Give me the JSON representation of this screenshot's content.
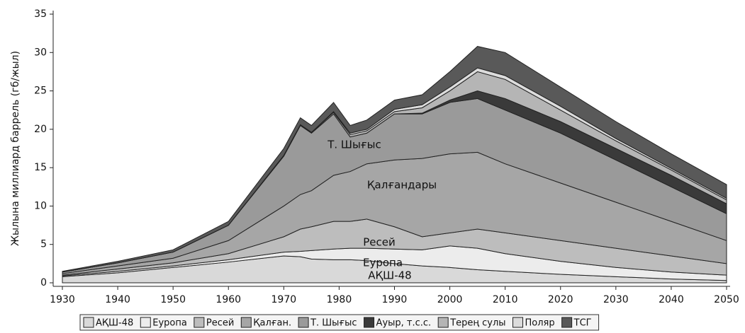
{
  "chart_data": {
    "type": "stacked_area",
    "y_label": "Жылына миллиард баррель (гб/жыл)",
    "x": [
      1930,
      1940,
      1950,
      1960,
      1970,
      1973,
      1975,
      1979,
      1982,
      1985,
      1990,
      1995,
      2000,
      2005,
      2010,
      2020,
      2030,
      2040,
      2050
    ],
    "series": [
      {
        "name": "АҚШ-48",
        "color": "#d9d9d9",
        "values": [
          0.8,
          1.3,
          2.0,
          2.7,
          3.5,
          3.4,
          3.1,
          3.0,
          3.0,
          2.9,
          2.5,
          2.2,
          2.0,
          1.7,
          1.5,
          1.1,
          0.8,
          0.5,
          0.3
        ]
      },
      {
        "name": "Еуропа",
        "color": "#ececec",
        "values": [
          0.1,
          0.2,
          0.2,
          0.3,
          0.5,
          0.7,
          1.1,
          1.4,
          1.5,
          1.6,
          1.9,
          2.1,
          2.8,
          2.8,
          2.3,
          1.7,
          1.2,
          0.9,
          0.7
        ]
      },
      {
        "name": "Ресей",
        "color": "#bdbdbd",
        "values": [
          0.1,
          0.3,
          0.4,
          0.8,
          2.0,
          2.9,
          3.1,
          3.6,
          3.5,
          3.8,
          2.9,
          1.7,
          1.7,
          2.5,
          2.7,
          2.7,
          2.5,
          2.1,
          1.5
        ]
      },
      {
        "name": "Қалған.",
        "color": "#a6a6a6",
        "values": [
          0.2,
          0.4,
          0.6,
          1.7,
          4.0,
          4.5,
          4.7,
          6.0,
          6.5,
          7.2,
          8.7,
          10.2,
          10.3,
          10.0,
          9.0,
          7.5,
          6.0,
          4.5,
          3.0
        ]
      },
      {
        "name": "Т. Шығыс",
        "color": "#9a9a9a",
        "values": [
          0.2,
          0.4,
          0.8,
          2.0,
          6.5,
          9.0,
          7.5,
          8.0,
          4.5,
          4.0,
          6.0,
          5.8,
          6.7,
          7.0,
          7.0,
          6.5,
          5.5,
          4.5,
          3.5
        ]
      },
      {
        "name": "Ауыр, т.с.с.",
        "color": "#3a3a3a",
        "values": [
          0,
          0,
          0,
          0,
          0,
          0,
          0,
          0,
          0,
          0,
          0,
          0.1,
          0.3,
          1.0,
          1.5,
          1.5,
          1.5,
          1.5,
          1.3
        ]
      },
      {
        "name": "Терең сулы",
        "color": "#b5b5b5",
        "values": [
          0,
          0,
          0,
          0,
          0.1,
          0.1,
          0.1,
          0.2,
          0.3,
          0.3,
          0.3,
          0.7,
          1.2,
          2.5,
          2.5,
          1.5,
          1.0,
          0.7,
          0.5
        ]
      },
      {
        "name": "Поляр",
        "color": "#dcdcdc",
        "values": [
          0,
          0,
          0,
          0,
          0,
          0,
          0,
          0.1,
          0.2,
          0.2,
          0.3,
          0.4,
          0.5,
          0.5,
          0.5,
          0.5,
          0.3,
          0.2,
          0.2
        ]
      },
      {
        "name": "ТСГ",
        "color": "#595959",
        "values": [
          0.1,
          0.2,
          0.3,
          0.5,
          0.9,
          0.9,
          0.9,
          1.2,
          1.0,
          1.2,
          1.2,
          1.3,
          2.0,
          2.8,
          3.0,
          2.5,
          2.2,
          1.9,
          1.8
        ]
      }
    ],
    "annotations": [
      "Т. Шығыс",
      "Қалғандары",
      "Ресей",
      "Еуропа",
      "АҚШ-48"
    ],
    "xlim": [
      1930,
      2050
    ],
    "xticks": [
      1930,
      1940,
      1950,
      1960,
      1970,
      1980,
      1990,
      2000,
      2010,
      2020,
      2030,
      2040,
      2050
    ],
    "ylim": [
      0,
      35
    ],
    "yticks": [
      0,
      5,
      10,
      15,
      20,
      25,
      30,
      35
    ],
    "legend": "bottom"
  }
}
